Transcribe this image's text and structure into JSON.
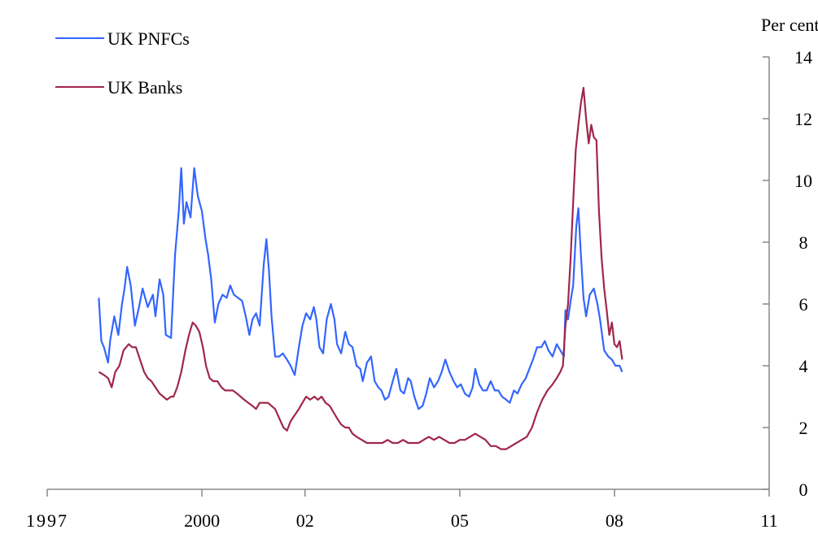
{
  "chart_data": {
    "type": "line",
    "title": "",
    "xlabel": "",
    "ylabel": "Per cent",
    "y_axis_side": "right",
    "xlim": [
      1997,
      2011
    ],
    "ylim": [
      0,
      14
    ],
    "x_ticks": [
      1997,
      2000,
      2002,
      2005,
      2008,
      2011
    ],
    "x_tick_labels": [
      "1997",
      "2000",
      "02",
      "05",
      "08",
      "11"
    ],
    "y_ticks": [
      0,
      2,
      4,
      6,
      8,
      10,
      12,
      14
    ],
    "y_tick_labels": [
      "0",
      "2",
      "4",
      "6",
      "8",
      "10",
      "12",
      "14"
    ],
    "grid": false,
    "legend_position": "top-left",
    "series": [
      {
        "name": "UK PNFCs",
        "color": "#3366ff",
        "points": [
          [
            1998.0,
            6.2
          ],
          [
            1998.05,
            4.8
          ],
          [
            1998.1,
            4.6
          ],
          [
            1998.18,
            4.1
          ],
          [
            1998.22,
            4.8
          ],
          [
            1998.3,
            5.6
          ],
          [
            1998.38,
            5.0
          ],
          [
            1998.45,
            6.0
          ],
          [
            1998.5,
            6.5
          ],
          [
            1998.55,
            7.2
          ],
          [
            1998.62,
            6.6
          ],
          [
            1998.7,
            5.3
          ],
          [
            1998.78,
            5.9
          ],
          [
            1998.85,
            6.5
          ],
          [
            1998.95,
            5.9
          ],
          [
            1999.05,
            6.3
          ],
          [
            1999.1,
            5.6
          ],
          [
            1999.18,
            6.8
          ],
          [
            1999.25,
            6.3
          ],
          [
            1999.3,
            5.0
          ],
          [
            1999.4,
            4.9
          ],
          [
            1999.48,
            7.6
          ],
          [
            1999.55,
            9.0
          ],
          [
            1999.6,
            10.4
          ],
          [
            1999.65,
            8.6
          ],
          [
            1999.7,
            9.3
          ],
          [
            1999.78,
            8.8
          ],
          [
            1999.85,
            10.4
          ],
          [
            1999.92,
            9.5
          ],
          [
            2000.0,
            9.0
          ],
          [
            2000.07,
            8.1
          ],
          [
            2000.12,
            7.6
          ],
          [
            2000.18,
            6.8
          ],
          [
            2000.25,
            5.4
          ],
          [
            2000.32,
            6.0
          ],
          [
            2000.4,
            6.3
          ],
          [
            2000.48,
            6.2
          ],
          [
            2000.55,
            6.6
          ],
          [
            2000.62,
            6.3
          ],
          [
            2000.7,
            6.2
          ],
          [
            2000.78,
            6.1
          ],
          [
            2000.85,
            5.6
          ],
          [
            2000.92,
            5.0
          ],
          [
            2000.98,
            5.5
          ],
          [
            2001.05,
            5.7
          ],
          [
            2001.12,
            5.3
          ],
          [
            2001.2,
            7.3
          ],
          [
            2001.25,
            8.1
          ],
          [
            2001.3,
            7.1
          ],
          [
            2001.35,
            5.6
          ],
          [
            2001.42,
            4.3
          ],
          [
            2001.5,
            4.3
          ],
          [
            2001.57,
            4.4
          ],
          [
            2001.65,
            4.2
          ],
          [
            2001.72,
            4.0
          ],
          [
            2001.8,
            3.7
          ],
          [
            2001.88,
            4.6
          ],
          [
            2001.95,
            5.3
          ],
          [
            2002.02,
            5.7
          ],
          [
            2002.1,
            5.5
          ],
          [
            2002.17,
            5.9
          ],
          [
            2002.22,
            5.5
          ],
          [
            2002.28,
            4.6
          ],
          [
            2002.35,
            4.4
          ],
          [
            2002.42,
            5.5
          ],
          [
            2002.5,
            6.0
          ],
          [
            2002.57,
            5.5
          ],
          [
            2002.62,
            4.7
          ],
          [
            2002.7,
            4.4
          ],
          [
            2002.78,
            5.1
          ],
          [
            2002.85,
            4.7
          ],
          [
            2002.92,
            4.6
          ],
          [
            2003.0,
            4.0
          ],
          [
            2003.07,
            3.9
          ],
          [
            2003.12,
            3.5
          ],
          [
            2003.2,
            4.1
          ],
          [
            2003.28,
            4.3
          ],
          [
            2003.35,
            3.5
          ],
          [
            2003.42,
            3.3
          ],
          [
            2003.48,
            3.2
          ],
          [
            2003.55,
            2.9
          ],
          [
            2003.62,
            3.0
          ],
          [
            2003.7,
            3.5
          ],
          [
            2003.77,
            3.9
          ],
          [
            2003.85,
            3.2
          ],
          [
            2003.92,
            3.1
          ],
          [
            2004.0,
            3.6
          ],
          [
            2004.05,
            3.5
          ],
          [
            2004.12,
            3.0
          ],
          [
            2004.2,
            2.6
          ],
          [
            2004.28,
            2.7
          ],
          [
            2004.35,
            3.1
          ],
          [
            2004.42,
            3.6
          ],
          [
            2004.5,
            3.3
          ],
          [
            2004.58,
            3.5
          ],
          [
            2004.65,
            3.8
          ],
          [
            2004.72,
            4.2
          ],
          [
            2004.8,
            3.8
          ],
          [
            2004.88,
            3.5
          ],
          [
            2004.95,
            3.3
          ],
          [
            2005.02,
            3.4
          ],
          [
            2005.1,
            3.1
          ],
          [
            2005.18,
            3.0
          ],
          [
            2005.25,
            3.3
          ],
          [
            2005.3,
            3.9
          ],
          [
            2005.38,
            3.4
          ],
          [
            2005.45,
            3.2
          ],
          [
            2005.52,
            3.2
          ],
          [
            2005.6,
            3.5
          ],
          [
            2005.68,
            3.2
          ],
          [
            2005.75,
            3.2
          ],
          [
            2005.82,
            3.0
          ],
          [
            2005.9,
            2.9
          ],
          [
            2005.97,
            2.8
          ],
          [
            2006.05,
            3.2
          ],
          [
            2006.12,
            3.1
          ],
          [
            2006.2,
            3.4
          ],
          [
            2006.28,
            3.6
          ],
          [
            2006.35,
            3.9
          ],
          [
            2006.42,
            4.2
          ],
          [
            2006.5,
            4.6
          ],
          [
            2006.58,
            4.6
          ],
          [
            2006.65,
            4.8
          ],
          [
            2006.72,
            4.5
          ],
          [
            2006.8,
            4.3
          ],
          [
            2006.88,
            4.7
          ],
          [
            2006.95,
            4.5
          ],
          [
            2007.02,
            4.3
          ],
          [
            2007.05,
            5.8
          ],
          [
            2007.1,
            5.5
          ],
          [
            2007.15,
            6.1
          ],
          [
            2007.2,
            6.6
          ],
          [
            2007.26,
            8.5
          ],
          [
            2007.3,
            9.1
          ],
          [
            2007.35,
            7.6
          ],
          [
            2007.4,
            6.2
          ],
          [
            2007.45,
            5.6
          ],
          [
            2007.52,
            6.3
          ],
          [
            2007.6,
            6.5
          ],
          [
            2007.67,
            6.0
          ],
          [
            2007.72,
            5.5
          ],
          [
            2007.8,
            4.5
          ],
          [
            2007.88,
            4.3
          ],
          [
            2007.95,
            4.2
          ],
          [
            2008.02,
            4.0
          ],
          [
            2008.1,
            4.0
          ],
          [
            2008.15,
            3.8
          ]
        ]
      },
      {
        "name": "UK Banks",
        "color": "#a0274a",
        "points": [
          [
            1998.0,
            3.8
          ],
          [
            1998.1,
            3.7
          ],
          [
            1998.18,
            3.6
          ],
          [
            1998.25,
            3.3
          ],
          [
            1998.32,
            3.8
          ],
          [
            1998.4,
            4.0
          ],
          [
            1998.48,
            4.5
          ],
          [
            1998.58,
            4.7
          ],
          [
            1998.65,
            4.6
          ],
          [
            1998.72,
            4.6
          ],
          [
            1998.8,
            4.2
          ],
          [
            1998.88,
            3.8
          ],
          [
            1998.95,
            3.6
          ],
          [
            1999.02,
            3.5
          ],
          [
            1999.1,
            3.3
          ],
          [
            1999.18,
            3.1
          ],
          [
            1999.25,
            3.0
          ],
          [
            1999.32,
            2.9
          ],
          [
            1999.4,
            3.0
          ],
          [
            1999.45,
            3.0
          ],
          [
            1999.52,
            3.3
          ],
          [
            1999.6,
            3.8
          ],
          [
            1999.68,
            4.5
          ],
          [
            1999.75,
            5.0
          ],
          [
            1999.82,
            5.4
          ],
          [
            1999.88,
            5.3
          ],
          [
            1999.95,
            5.1
          ],
          [
            2000.02,
            4.6
          ],
          [
            2000.08,
            4.0
          ],
          [
            2000.15,
            3.6
          ],
          [
            2000.22,
            3.5
          ],
          [
            2000.3,
            3.5
          ],
          [
            2000.38,
            3.3
          ],
          [
            2000.45,
            3.2
          ],
          [
            2000.52,
            3.2
          ],
          [
            2000.6,
            3.2
          ],
          [
            2000.68,
            3.1
          ],
          [
            2000.75,
            3.0
          ],
          [
            2000.82,
            2.9
          ],
          [
            2000.9,
            2.8
          ],
          [
            2000.98,
            2.7
          ],
          [
            2001.05,
            2.6
          ],
          [
            2001.12,
            2.8
          ],
          [
            2001.2,
            2.8
          ],
          [
            2001.28,
            2.8
          ],
          [
            2001.35,
            2.7
          ],
          [
            2001.42,
            2.6
          ],
          [
            2001.5,
            2.3
          ],
          [
            2001.58,
            2.0
          ],
          [
            2001.65,
            1.9
          ],
          [
            2001.72,
            2.2
          ],
          [
            2001.8,
            2.4
          ],
          [
            2001.88,
            2.6
          ],
          [
            2001.95,
            2.8
          ],
          [
            2002.02,
            3.0
          ],
          [
            2002.1,
            2.9
          ],
          [
            2002.18,
            3.0
          ],
          [
            2002.25,
            2.9
          ],
          [
            2002.32,
            3.0
          ],
          [
            2002.4,
            2.8
          ],
          [
            2002.48,
            2.7
          ],
          [
            2002.55,
            2.5
          ],
          [
            2002.62,
            2.3
          ],
          [
            2002.7,
            2.1
          ],
          [
            2002.78,
            2.0
          ],
          [
            2002.85,
            2.0
          ],
          [
            2002.92,
            1.8
          ],
          [
            2003.0,
            1.7
          ],
          [
            2003.1,
            1.6
          ],
          [
            2003.2,
            1.5
          ],
          [
            2003.3,
            1.5
          ],
          [
            2003.4,
            1.5
          ],
          [
            2003.5,
            1.5
          ],
          [
            2003.6,
            1.6
          ],
          [
            2003.7,
            1.5
          ],
          [
            2003.8,
            1.5
          ],
          [
            2003.9,
            1.6
          ],
          [
            2004.0,
            1.5
          ],
          [
            2004.1,
            1.5
          ],
          [
            2004.2,
            1.5
          ],
          [
            2004.3,
            1.6
          ],
          [
            2004.4,
            1.7
          ],
          [
            2004.5,
            1.6
          ],
          [
            2004.6,
            1.7
          ],
          [
            2004.7,
            1.6
          ],
          [
            2004.8,
            1.5
          ],
          [
            2004.9,
            1.5
          ],
          [
            2005.0,
            1.6
          ],
          [
            2005.1,
            1.6
          ],
          [
            2005.2,
            1.7
          ],
          [
            2005.3,
            1.8
          ],
          [
            2005.4,
            1.7
          ],
          [
            2005.5,
            1.6
          ],
          [
            2005.6,
            1.4
          ],
          [
            2005.7,
            1.4
          ],
          [
            2005.8,
            1.3
          ],
          [
            2005.9,
            1.3
          ],
          [
            2006.0,
            1.4
          ],
          [
            2006.1,
            1.5
          ],
          [
            2006.2,
            1.6
          ],
          [
            2006.3,
            1.7
          ],
          [
            2006.4,
            2.0
          ],
          [
            2006.5,
            2.5
          ],
          [
            2006.6,
            2.9
          ],
          [
            2006.7,
            3.2
          ],
          [
            2006.8,
            3.4
          ],
          [
            2006.88,
            3.6
          ],
          [
            2006.95,
            3.8
          ],
          [
            2007.0,
            4.0
          ],
          [
            2007.05,
            5.3
          ],
          [
            2007.1,
            6.0
          ],
          [
            2007.15,
            7.5
          ],
          [
            2007.2,
            9.3
          ],
          [
            2007.25,
            11.0
          ],
          [
            2007.3,
            11.8
          ],
          [
            2007.35,
            12.5
          ],
          [
            2007.4,
            13.0
          ],
          [
            2007.45,
            12.0
          ],
          [
            2007.5,
            11.2
          ],
          [
            2007.55,
            11.8
          ],
          [
            2007.6,
            11.4
          ],
          [
            2007.65,
            11.3
          ],
          [
            2007.7,
            9.0
          ],
          [
            2007.75,
            7.5
          ],
          [
            2007.8,
            6.5
          ],
          [
            2007.85,
            5.8
          ],
          [
            2007.9,
            5.0
          ],
          [
            2007.95,
            5.4
          ],
          [
            2008.0,
            4.7
          ],
          [
            2008.05,
            4.6
          ],
          [
            2008.1,
            4.8
          ],
          [
            2008.15,
            4.2
          ]
        ]
      }
    ]
  }
}
